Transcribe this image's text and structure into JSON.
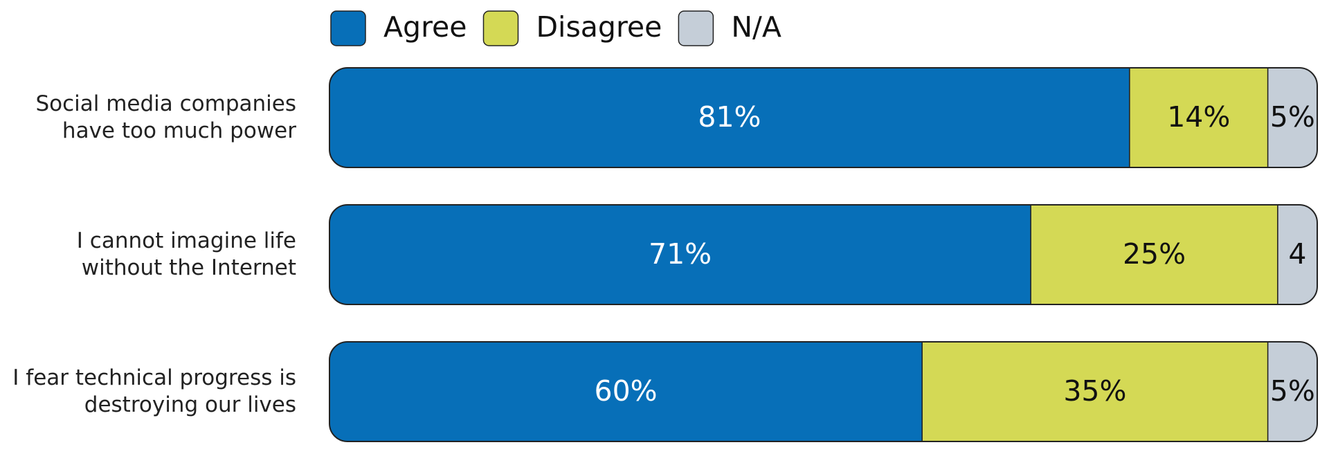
{
  "chart_data": {
    "type": "stacked-bar-horizontal",
    "categories": [
      "Social media companies\nhave too much power",
      "I cannot imagine life\nwithout the Internet",
      "I fear technical progress is\ndestroying our lives"
    ],
    "series": [
      {
        "name": "Agree",
        "color": "#076fb8",
        "values": [
          81,
          71,
          60
        ],
        "value_labels": [
          "81%",
          "71%",
          "60%"
        ]
      },
      {
        "name": "Disagree",
        "color": "#d4d955",
        "values": [
          14,
          25,
          35
        ],
        "value_labels": [
          "14%",
          "25%",
          "35%"
        ]
      },
      {
        "name": "N/A",
        "color": "#c5ced8",
        "values": [
          5,
          4,
          5
        ],
        "value_labels": [
          "5%",
          "4",
          "5%"
        ]
      }
    ],
    "legend": "top"
  }
}
